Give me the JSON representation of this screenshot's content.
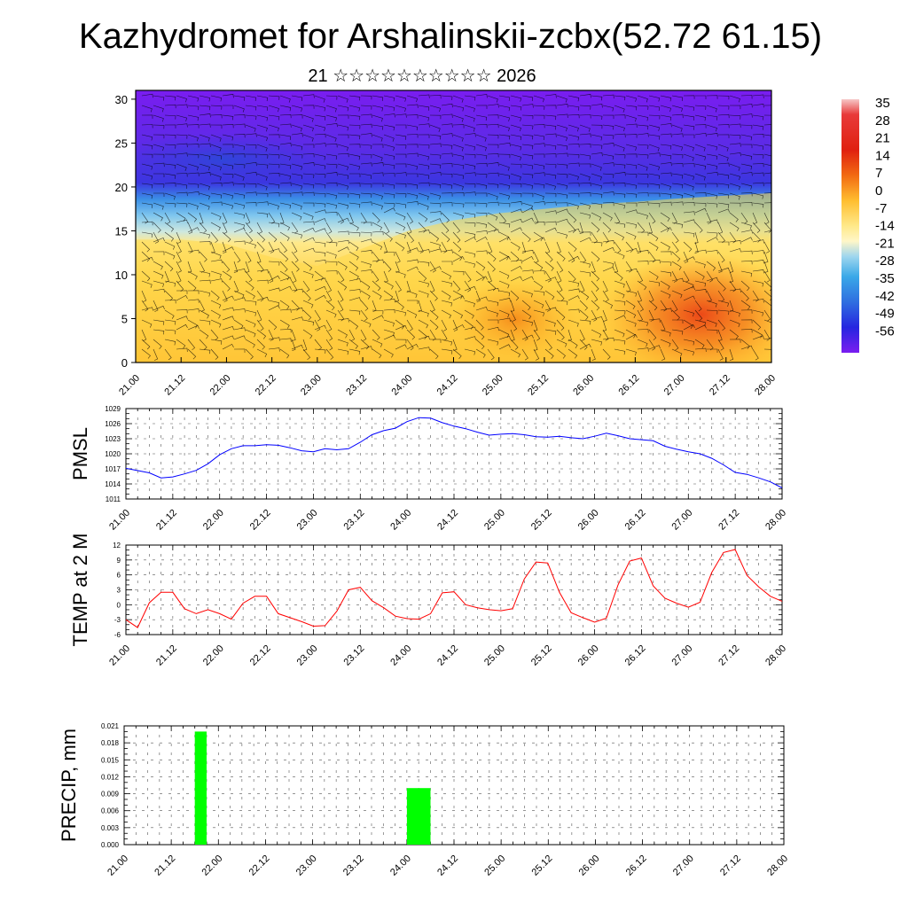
{
  "page": {
    "title": "Kazhydromet for Arshalinskii-zcbx(52.72 61.15)",
    "subtitle": "21 ☆☆☆☆☆☆☆☆☆☆ 2026"
  },
  "colors": {
    "pmsl_line": "#0000ff",
    "temp_line": "#ff0000",
    "precip_bar": "#00ff00",
    "grid": "#555555"
  },
  "chart_data": [
    {
      "id": "cross_section",
      "type": "heatmap",
      "title": "",
      "xlabel": "",
      "ylabel": "",
      "x_ticks": [
        "21.00",
        "21.12",
        "22.00",
        "22.12",
        "23.00",
        "23.12",
        "24.00",
        "24.12",
        "25.00",
        "25.12",
        "26.00",
        "26.12",
        "27.00",
        "27.12",
        "28.00"
      ],
      "y_ticks": [
        0,
        5,
        10,
        15,
        20,
        25,
        30
      ],
      "ylim": [
        0,
        31
      ],
      "xlim": [
        0,
        14
      ],
      "colorbar_labels": [
        "35",
        "28",
        "21",
        "14",
        "7",
        "0",
        "-7",
        "-14",
        "-21",
        "-28",
        "-35",
        "-42",
        "-49",
        "-56"
      ],
      "freezing_level": [
        14,
        14,
        13.5,
        12,
        11,
        13,
        15,
        16.2,
        17,
        17.5,
        18,
        18.3,
        18.7,
        19,
        19.3
      ],
      "note": "filled temperature (°C) vs height with wind barbs"
    },
    {
      "id": "pmsl",
      "type": "line",
      "ylabel": "PMSL",
      "x_ticks": [
        "21.00",
        "21.12",
        "22.00",
        "22.12",
        "23.00",
        "23.12",
        "24.00",
        "24.12",
        "25.00",
        "25.12",
        "26.00",
        "26.12",
        "27.00",
        "27.12",
        "28.00"
      ],
      "y_ticks": [
        1011,
        1014,
        1017,
        1020,
        1023,
        1026,
        1029
      ],
      "ylim": [
        1011,
        1029
      ],
      "xlim": [
        0,
        14
      ],
      "series": [
        {
          "name": "PMSL",
          "x": [
            0,
            0.5,
            0.75,
            1,
            1.25,
            1.5,
            1.75,
            2,
            2.25,
            2.5,
            2.75,
            3,
            3.25,
            3.5,
            3.75,
            4,
            4.25,
            4.5,
            4.75,
            5,
            5.25,
            5.5,
            5.75,
            6,
            6.25,
            6.5,
            6.75,
            7,
            7.25,
            7.5,
            7.75,
            8,
            8.25,
            8.5,
            8.75,
            9,
            9.25,
            9.5,
            9.75,
            10,
            10.25,
            10.5,
            10.75,
            11,
            11.25,
            11.5,
            11.75,
            12,
            12.25,
            12.5,
            12.75,
            13,
            13.25,
            13.5,
            13.75,
            14
          ],
          "values": [
            1017.1,
            1016.2,
            1015.2,
            1015.4,
            1016.0,
            1016.7,
            1018.0,
            1019.8,
            1021.0,
            1021.6,
            1021.6,
            1021.8,
            1021.7,
            1021.2,
            1020.6,
            1020.4,
            1021.0,
            1020.8,
            1021.0,
            1022.3,
            1023.8,
            1024.6,
            1025.1,
            1026.4,
            1027.2,
            1027.1,
            1026.2,
            1025.5,
            1025.0,
            1024.3,
            1023.7,
            1023.9,
            1024.0,
            1023.8,
            1023.4,
            1023.3,
            1023.5,
            1023.2,
            1023.0,
            1023.5,
            1024.1,
            1023.6,
            1023.0,
            1022.8,
            1022.6,
            1021.5,
            1020.9,
            1020.4,
            1020.0,
            1019.1,
            1017.8,
            1016.3,
            1015.9,
            1015.2,
            1014.4,
            1013.2
          ]
        }
      ]
    },
    {
      "id": "temp2m",
      "type": "line",
      "ylabel": "TEMP at 2 M",
      "x_ticks": [
        "21.00",
        "21.12",
        "22.00",
        "22.12",
        "23.00",
        "23.12",
        "24.00",
        "24.12",
        "25.00",
        "25.12",
        "26.00",
        "26.12",
        "27.00",
        "27.12",
        "28.00"
      ],
      "y_ticks": [
        -6,
        -3,
        0,
        3,
        6,
        9,
        12
      ],
      "ylim": [
        -6,
        12
      ],
      "xlim": [
        0,
        14
      ],
      "series": [
        {
          "name": "TEMP at 2 M",
          "x": [
            0,
            0.25,
            0.5,
            0.75,
            1,
            1.25,
            1.5,
            1.75,
            2,
            2.25,
            2.5,
            2.75,
            3,
            3.25,
            3.5,
            3.75,
            4,
            4.25,
            4.5,
            4.75,
            5,
            5.25,
            5.5,
            5.75,
            6,
            6.25,
            6.5,
            6.75,
            7,
            7.25,
            7.5,
            7.75,
            8,
            8.25,
            8.5,
            8.75,
            9,
            9.25,
            9.5,
            9.75,
            10,
            10.25,
            10.5,
            10.75,
            11,
            11.25,
            11.5,
            11.75,
            12,
            12.25,
            12.5,
            12.75,
            13,
            13.25,
            13.5,
            13.75,
            14
          ],
          "values": [
            -3.0,
            -4.6,
            0.4,
            2.5,
            2.5,
            -0.8,
            -1.8,
            -1.0,
            -1.8,
            -2.9,
            0.3,
            1.7,
            1.7,
            -1.8,
            -2.6,
            -3.4,
            -4.3,
            -4.2,
            -1.3,
            3.0,
            3.5,
            0.8,
            -0.6,
            -2.3,
            -2.8,
            -2.9,
            -1.8,
            2.4,
            2.6,
            0.0,
            -0.6,
            -1.0,
            -1.2,
            -0.8,
            5.2,
            8.6,
            8.4,
            2.5,
            -1.6,
            -2.6,
            -3.5,
            -2.7,
            4.0,
            8.8,
            9.4,
            3.8,
            1.3,
            0.3,
            -0.5,
            0.5,
            6.5,
            10.5,
            11.1,
            5.9,
            3.6,
            1.7,
            0.7
          ]
        }
      ]
    },
    {
      "id": "precip",
      "type": "bar",
      "ylabel": "PRECIP, mm",
      "x_ticks": [
        "21.00",
        "21.12",
        "22.00",
        "22.12",
        "23.00",
        "23.12",
        "24.00",
        "24.12",
        "25.00",
        "25.12",
        "26.00",
        "26.12",
        "27.00",
        "27.12",
        "28.00"
      ],
      "y_ticks": [
        "0.000",
        "0.003",
        "0.006",
        "0.009",
        "0.012",
        "0.015",
        "0.018",
        "0.021"
      ],
      "ylim": [
        0,
        0.021
      ],
      "xlim": [
        0,
        14
      ],
      "bars": [
        {
          "x_from": 1.5,
          "x_to": 1.75,
          "value": 0.02
        },
        {
          "x_from": 6.0,
          "x_to": 6.5,
          "value": 0.01
        }
      ]
    }
  ]
}
